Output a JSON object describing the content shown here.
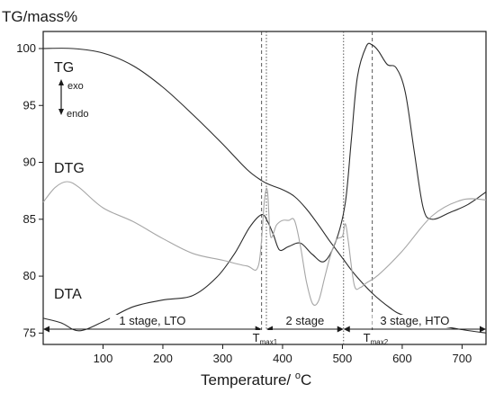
{
  "chart_data": {
    "type": "line",
    "ylabel": "TG/mass%",
    "xlabel": {
      "text": "Temperature/ ",
      "unit_sup": "o",
      "unit_tail": "C"
    },
    "xlim": [
      0,
      740
    ],
    "ylim": [
      74,
      101.5
    ],
    "xticks": [
      100,
      200,
      300,
      400,
      500,
      600,
      700
    ],
    "yticks": [
      75,
      80,
      85,
      90,
      95,
      100
    ],
    "grid": false,
    "colors": {
      "tg": "#2b2b2b",
      "dta": "#2b2b2b",
      "dtg": "#a6a6a6",
      "axis": "#1a1a1a"
    },
    "curve_labels": {
      "tg": "TG",
      "dtg": "DTG",
      "dta": "DTA"
    },
    "heat_flow": {
      "exo": "exo",
      "endo": "endo"
    },
    "series": [
      {
        "key": "tg",
        "x": [
          0,
          50,
          100,
          150,
          200,
          250,
          300,
          340,
          365,
          380,
          400,
          420,
          440,
          460,
          480,
          500,
          520,
          550,
          580,
          600,
          650,
          700,
          740
        ],
        "y": [
          100,
          100,
          99.6,
          98.5,
          96.6,
          94.2,
          91.6,
          89.4,
          88.4,
          88.0,
          87.6,
          87.0,
          85.9,
          84.5,
          83.0,
          81.6,
          80.2,
          78.5,
          77.2,
          76.6,
          75.8,
          75.3,
          75.0
        ]
      },
      {
        "key": "dta",
        "x": [
          0,
          30,
          60,
          100,
          150,
          200,
          250,
          290,
          320,
          345,
          365,
          375,
          385,
          395,
          410,
          430,
          450,
          470,
          490,
          505,
          515,
          525,
          540,
          550,
          560,
          575,
          590,
          605,
          620,
          635,
          650,
          680,
          710,
          740
        ],
        "y": [
          76.3,
          75.9,
          75.2,
          76.0,
          77.3,
          77.9,
          78.3,
          79.9,
          82.0,
          84.3,
          85.4,
          84.8,
          83.6,
          82.3,
          82.6,
          82.9,
          81.9,
          81.3,
          83.2,
          86.5,
          92.0,
          97.5,
          100.2,
          100.3,
          99.8,
          98.6,
          98.3,
          96.2,
          91.0,
          86.0,
          85.0,
          85.6,
          86.3,
          87.4
        ]
      },
      {
        "key": "dtg",
        "x": [
          0,
          20,
          40,
          60,
          100,
          150,
          200,
          250,
          300,
          340,
          360,
          370,
          375,
          380,
          390,
          400,
          410,
          420,
          430,
          440,
          450,
          460,
          470,
          480,
          490,
          500,
          505,
          510,
          520,
          530,
          540,
          560,
          600,
          650,
          700,
          740
        ],
        "y": [
          86.5,
          87.8,
          88.3,
          87.8,
          86.0,
          84.8,
          83.3,
          82.0,
          81.4,
          80.9,
          81.0,
          86.8,
          87.4,
          83.5,
          84.5,
          84.9,
          84.9,
          84.9,
          82.6,
          79.5,
          77.6,
          77.8,
          79.8,
          81.8,
          83.2,
          83.5,
          84.6,
          83.0,
          79.2,
          79.0,
          79.4,
          80.1,
          82.2,
          85.3,
          86.7,
          86.7
        ]
      }
    ],
    "markers": [
      {
        "x": 365,
        "style": "dashed",
        "main": "T",
        "sub": "max1"
      },
      {
        "x": 373,
        "style": "dotted"
      },
      {
        "x": 502,
        "style": "dotted"
      },
      {
        "x": 550,
        "style": "dashed",
        "main": "T",
        "sub": "max2"
      }
    ],
    "stages": [
      {
        "from": 0,
        "to": 365,
        "label": "1 stage, LTO"
      },
      {
        "from": 373,
        "to": 502,
        "label": "2 stage"
      },
      {
        "from": 502,
        "to": 740,
        "label": "3 stage, HTO"
      }
    ]
  }
}
